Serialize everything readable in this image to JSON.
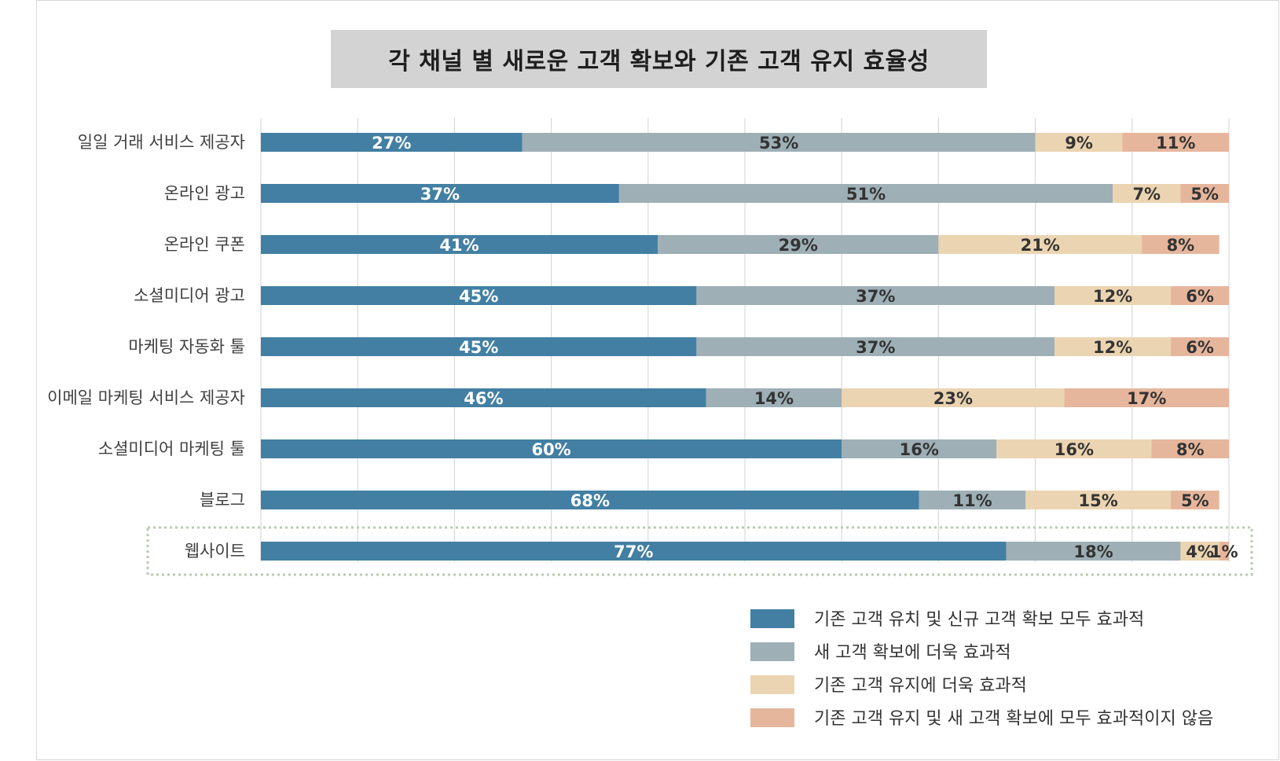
{
  "chart_data": {
    "type": "bar",
    "orientation": "horizontal",
    "stacked": true,
    "title": "각 채널 별 새로운 고객 확보와 기존 고객 유지 효율성",
    "categories": [
      "일일 거래 서비스 제공자",
      "온라인 광고",
      "온라인 쿠폰",
      "소셜미디어 광고",
      "마케팅 자동화  툴",
      "이메일 마케팅 서비스 제공자",
      "소셜미디어 마케팅 툴",
      "블로그",
      "웹사이트"
    ],
    "highlighted_category": "웹사이트",
    "series": [
      {
        "name": "기존 고객 유치 및 신규 고객 확보 모두 효과적",
        "color": "#427fa3",
        "label_color": "#ffffff",
        "values": [
          27,
          37,
          41,
          45,
          45,
          46,
          60,
          68,
          77
        ]
      },
      {
        "name": "새 고객 확보에 더욱 효과적",
        "color": "#9eafb6",
        "label_color": "#333333",
        "values": [
          53,
          51,
          29,
          37,
          37,
          14,
          16,
          11,
          18
        ]
      },
      {
        "name": "기존 고객 유지에 더욱 효과적",
        "color": "#ebd4b1",
        "label_color": "#333333",
        "values": [
          9,
          7,
          21,
          12,
          12,
          23,
          16,
          15,
          4
        ]
      },
      {
        "name": "기존 고객 유지 및 새 고객 확보에 모두 효과적이지 않음",
        "color": "#e6b69c",
        "label_color": "#333333",
        "values": [
          11,
          5,
          8,
          6,
          6,
          17,
          8,
          5,
          1
        ]
      }
    ],
    "value_suffix": "%",
    "xlim": [
      0,
      100
    ],
    "grid": true,
    "legend_position": "bottom-right"
  }
}
